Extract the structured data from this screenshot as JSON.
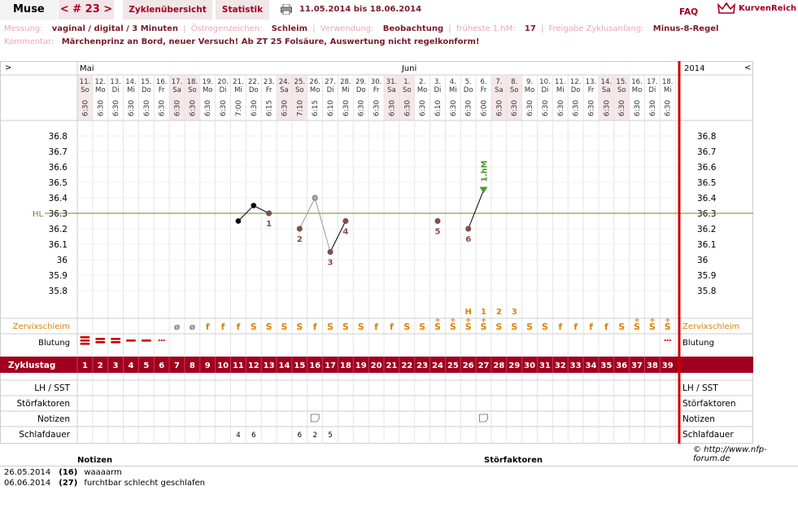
{
  "header": {
    "user": "Muse",
    "cycle": "< # 23 >",
    "tabs": [
      "Zyklenübersicht",
      "Statistik"
    ],
    "daterange": "11.05.2014 bis 18.06.2014",
    "faq": "FAQ",
    "brand": "KurvenReich",
    "icons": [
      "printer-icon",
      "crown-icon"
    ]
  },
  "info": {
    "messung_label": "Messung:",
    "messung": "vaginal / digital / 3 Minuten",
    "oestrogen_label": "Östrogenzeichen:",
    "oestrogen": "Schleim",
    "verwendung_label": "Verwendung:",
    "verwendung": "Beobachtung",
    "frueheste_label": "früheste 1.hM:",
    "frueheste": "17",
    "freigabe_label": "Freigabe Zyklusanfang:",
    "freigabe": "Minus-8-Regel",
    "kommentar_label": "Kommentar:",
    "kommentar": "Märchenprinz an Bord, neuer Versuch! Ab ZT 25 Folsäure, Auswertung nicht regelkonform!"
  },
  "chart": {
    "left_arrow": ">",
    "right_arrow": "<",
    "year": "2014",
    "months": [
      {
        "label": "Mai",
        "day": 1
      },
      {
        "label": "Juni",
        "day": 22
      }
    ],
    "dates": [
      "11.",
      "12.",
      "13.",
      "14.",
      "15.",
      "16.",
      "17.",
      "18.",
      "19.",
      "20.",
      "21.",
      "22.",
      "23.",
      "24.",
      "25.",
      "26.",
      "27.",
      "28.",
      "29.",
      "30.",
      "31.",
      "1.",
      "2.",
      "3.",
      "4.",
      "5.",
      "6.",
      "7.",
      "8.",
      "9.",
      "10.",
      "11.",
      "12.",
      "13.",
      "14.",
      "15.",
      "16.",
      "17.",
      "18."
    ],
    "weekdays": [
      "So",
      "Mo",
      "Di",
      "Mi",
      "Do",
      "Fr",
      "Sa",
      "So",
      "Mo",
      "Di",
      "Mi",
      "Do",
      "Fr",
      "Sa",
      "So",
      "Mo",
      "Di",
      "Mi",
      "Do",
      "Fr",
      "Sa",
      "So",
      "Mo",
      "Di",
      "Mi",
      "Do",
      "Fr",
      "Sa",
      "So",
      "Mo",
      "Di",
      "Mi",
      "Do",
      "Fr",
      "Sa",
      "So",
      "Mo",
      "Di",
      "Mi"
    ],
    "weekend_days": [
      1,
      7,
      8,
      14,
      15,
      21,
      22,
      28,
      29,
      35,
      36
    ],
    "times": [
      "6:30",
      "6:30",
      "6:30",
      "6:30",
      "6:30",
      "6:30",
      "6:30",
      "6:30",
      "6:30",
      "6:30",
      "7:00",
      "6:30",
      "6:15",
      "6:30",
      "7:10",
      "6:15",
      "6:10",
      "6:30",
      "6:30",
      "6:30",
      "6:30",
      "6:30",
      "6:30",
      "6:10",
      "6:30",
      "6:30",
      "6:00",
      "6:30",
      "6:30",
      "6:30",
      "6:30",
      "6:30",
      "6:30",
      "6:30",
      "6:30",
      "6:30",
      "6:30",
      "6:30",
      "6:30"
    ],
    "y_ticks": [
      "36.8",
      "36.7",
      "36.6",
      "36.5",
      "36.4",
      "36.3",
      "36.2",
      "36.1",
      "36",
      "35.9",
      "35.8"
    ],
    "hl_label": "HL",
    "hl_value": 36.3,
    "temperatures": [
      {
        "day": 11,
        "temp": 36.25
      },
      {
        "day": 12,
        "temp": 36.35
      },
      {
        "day": 13,
        "temp": 36.3,
        "label": "1"
      },
      {
        "day": 15,
        "temp": 36.2,
        "label": "2"
      },
      {
        "day": 16,
        "temp": 36.4,
        "excluded": true
      },
      {
        "day": 17,
        "temp": 36.05,
        "label": "3"
      },
      {
        "day": 18,
        "temp": 36.25,
        "label": "4"
      },
      {
        "day": 24,
        "temp": 36.25,
        "label": "5"
      },
      {
        "day": 26,
        "temp": 36.2,
        "label": "6"
      },
      {
        "day": 27,
        "temp": 36.45,
        "marker": "1.hM"
      }
    ],
    "h_labels": [
      {
        "day": 26,
        "text": "H"
      },
      {
        "day": 27,
        "text": "1"
      },
      {
        "day": 28,
        "text": "2"
      },
      {
        "day": 29,
        "text": "3"
      }
    ],
    "zervix_label": "Zervixschleim",
    "zervix": [
      "",
      "",
      "",
      "",
      "",
      "",
      "ø",
      "ø",
      "f",
      "f",
      "f",
      "S",
      "S",
      "S",
      "S",
      "f",
      "S",
      "S",
      "S",
      "f",
      "f",
      "S",
      "S",
      "S+",
      "S+",
      "S+",
      "S+",
      "S",
      "S",
      "S",
      "S",
      "f",
      "f",
      "f",
      "f",
      "S",
      "S+",
      "S+",
      "S+"
    ],
    "blutung_label": "Blutung",
    "zyklustag_label": "Zyklustag",
    "rows": [
      "LH / SST",
      "Störfaktoren",
      "Notizen",
      "Schlafdauer"
    ],
    "note_days": [
      16,
      27
    ],
    "schlafdauer": [
      {
        "day": 11,
        "v": "4"
      },
      {
        "day": 12,
        "v": "6"
      },
      {
        "day": 15,
        "v": "6"
      },
      {
        "day": 16,
        "v": "2"
      },
      {
        "day": 17,
        "v": "5"
      }
    ],
    "copyright": "© http://www.nfp-forum.de"
  },
  "notes": {
    "notizen_header": "Notizen",
    "stoerfaktoren_header": "Störfaktoren",
    "entries": [
      {
        "date": "26.05.2014",
        "day": "(16)",
        "text": "waaaarm"
      },
      {
        "date": "06.06.2014",
        "day": "(27)",
        "text": "furchtbar schlecht geschlafen"
      }
    ]
  },
  "colors": {
    "accent": "#a00020",
    "hl_line": "#6b8e23",
    "zervix": "#e08000",
    "weekend": "#f6e8ea",
    "dot": "#8b4a4a",
    "marker": "#4a9a2a"
  }
}
